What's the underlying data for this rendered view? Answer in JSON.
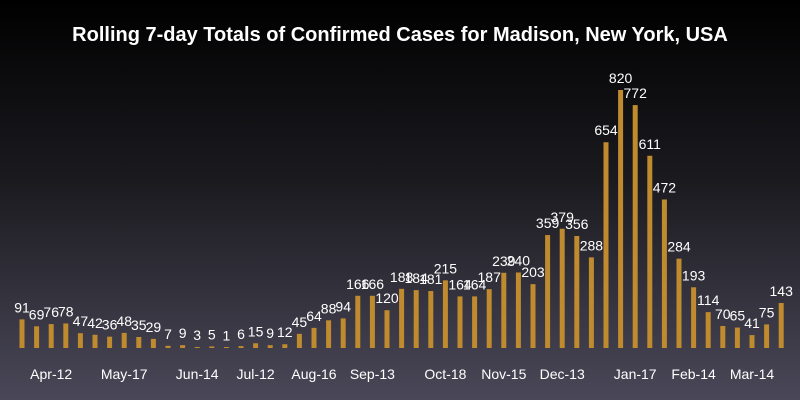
{
  "chart_data": {
    "type": "bar",
    "title": "Rolling 7-day Totals of Confirmed Cases for Madison, New York, USA",
    "xlabel": "",
    "ylabel": "",
    "ylim": [
      0,
      820
    ],
    "grid": false,
    "values": [
      91,
      69,
      76,
      78,
      47,
      42,
      36,
      48,
      35,
      29,
      7,
      9,
      3,
      5,
      1,
      6,
      15,
      9,
      12,
      45,
      64,
      88,
      94,
      166,
      166,
      120,
      188,
      184,
      181,
      215,
      164,
      164,
      187,
      239,
      240,
      203,
      359,
      379,
      356,
      288,
      654,
      820,
      772,
      611,
      472,
      284,
      193,
      114,
      70,
      65,
      41,
      75,
      143
    ],
    "tick_labels": [
      {
        "index": 2,
        "label": "Apr-12"
      },
      {
        "index": 7,
        "label": "May-17"
      },
      {
        "index": 12,
        "label": "Jun-14"
      },
      {
        "index": 16,
        "label": "Jul-12"
      },
      {
        "index": 20,
        "label": "Aug-16"
      },
      {
        "index": 24,
        "label": "Sep-13"
      },
      {
        "index": 29,
        "label": "Oct-18"
      },
      {
        "index": 33,
        "label": "Nov-15"
      },
      {
        "index": 37,
        "label": "Dec-13"
      },
      {
        "index": 42,
        "label": "Jan-17"
      },
      {
        "index": 46,
        "label": "Feb-14"
      },
      {
        "index": 50,
        "label": "Mar-14"
      }
    ]
  },
  "colors": {
    "bar": "#c08a2e",
    "text": "#ffffff"
  }
}
